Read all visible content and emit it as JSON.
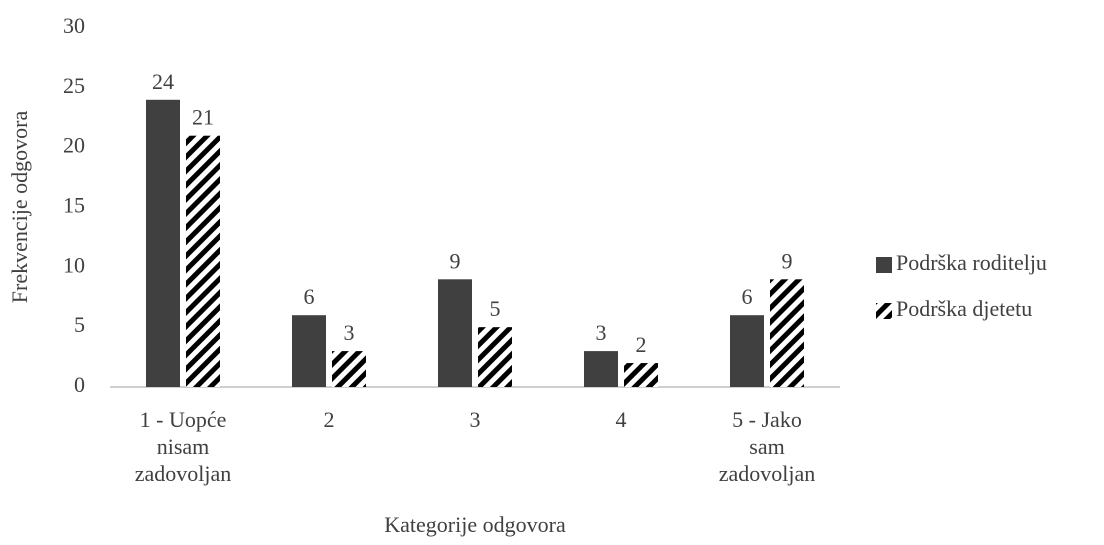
{
  "chart_data": {
    "type": "bar",
    "xlabel": "Kategorije odgovora",
    "ylabel": "Frekvencije odgovora",
    "categories": [
      "1 - Uopće\nnisam\nzadovoljan",
      "2",
      "3",
      "4",
      "5 - Jako\nsam\nzadovoljan"
    ],
    "series": [
      {
        "name": "Podrška roditelju",
        "color": "#404040",
        "pattern": "solid",
        "values": [
          24,
          6,
          9,
          3,
          6
        ]
      },
      {
        "name": "Podrška djetetu",
        "color": "#000000",
        "pattern": "hatch",
        "values": [
          21,
          3,
          5,
          2,
          9
        ]
      }
    ],
    "ylim": [
      0,
      30
    ],
    "yticks": [
      0,
      5,
      10,
      15,
      20,
      25,
      30
    ],
    "grid": false,
    "legend": "right"
  }
}
